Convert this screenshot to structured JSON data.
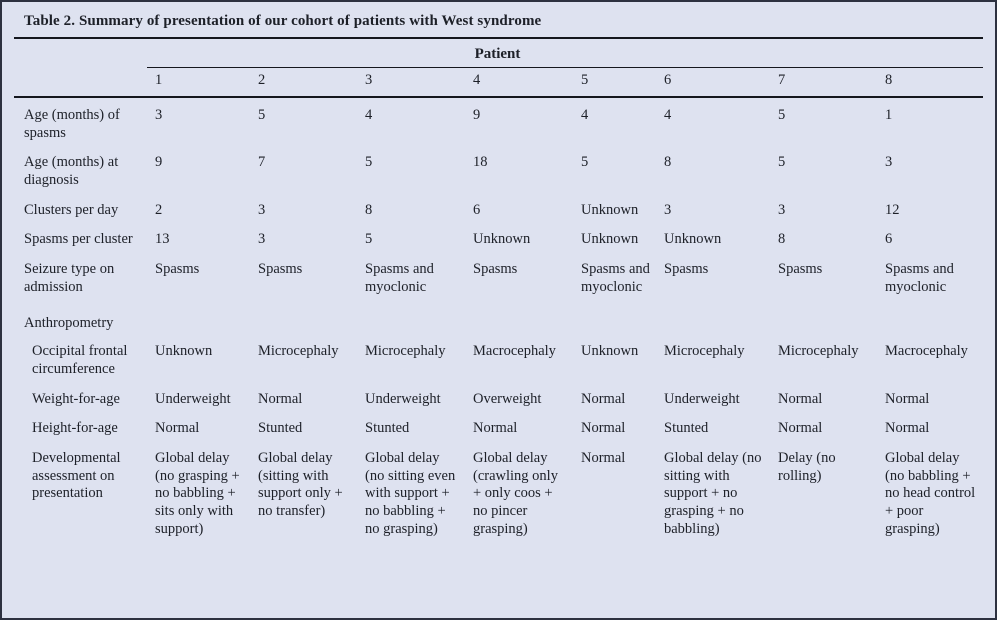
{
  "title": "Table 2. Summary of presentation of our cohort of patients with West syndrome",
  "header": {
    "group_label": "Patient",
    "columns": [
      "1",
      "2",
      "3",
      "4",
      "5",
      "6",
      "7",
      "8"
    ]
  },
  "rows": [
    {
      "label": "Age (months) of spasms",
      "values": [
        "3",
        "5",
        "4",
        "9",
        "4",
        "4",
        "5",
        "1"
      ]
    },
    {
      "label": "Age (months) at diagnosis",
      "values": [
        "9",
        "7",
        "5",
        "18",
        "5",
        "8",
        "5",
        "3"
      ]
    },
    {
      "label": "Clusters per day",
      "values": [
        "2",
        "3",
        "8",
        "6",
        "Unknown",
        "3",
        "3",
        "12"
      ]
    },
    {
      "label": "Spasms per cluster",
      "values": [
        "13",
        "3",
        "5",
        "Unknown",
        "Unknown",
        "Unknown",
        "8",
        "6"
      ]
    },
    {
      "label": "Seizure type on admission",
      "values": [
        "Spasms",
        "Spasms",
        "Spasms and myoclonic",
        "Spasms",
        "Spasms and myoclonic",
        "Spasms",
        "Spasms",
        "Spasms and myoclonic"
      ]
    },
    {
      "label": "Anthropometry",
      "values": []
    },
    {
      "label": "Occipital frontal circumference",
      "values": [
        "Unknown",
        "Microcephaly",
        "Microcephaly",
        "Macrocephaly",
        "Unknown",
        "Microcephaly",
        "Microcephaly",
        "Macrocephaly"
      ]
    },
    {
      "label": "Weight-for-age",
      "values": [
        "Underweight",
        "Normal",
        "Underweight",
        "Overweight",
        "Normal",
        "Underweight",
        "Normal",
        "Normal"
      ]
    },
    {
      "label": "Height-for-age",
      "values": [
        "Normal",
        "Stunted",
        "Stunted",
        "Normal",
        "Normal",
        "Stunted",
        "Normal",
        "Normal"
      ]
    },
    {
      "label": "Developmental assessment on presentation",
      "values": [
        "Global delay (no grasping + no babbling + sits only with support)",
        "Global delay (sitting with support only + no transfer)",
        "Global delay (no sitting even with support + no babbling + no grasping)",
        "Global delay (crawling only + only coos + no pincer grasping)",
        "Normal",
        "Global delay (no sitting with support + no grasping + no babbling)",
        "Delay (no rolling)",
        "Global delay (no babbling + no head control + poor grasping)"
      ]
    }
  ],
  "colors": {
    "page_background": "#dee2f0",
    "text": "#1d2028",
    "rule": "#15171e"
  }
}
